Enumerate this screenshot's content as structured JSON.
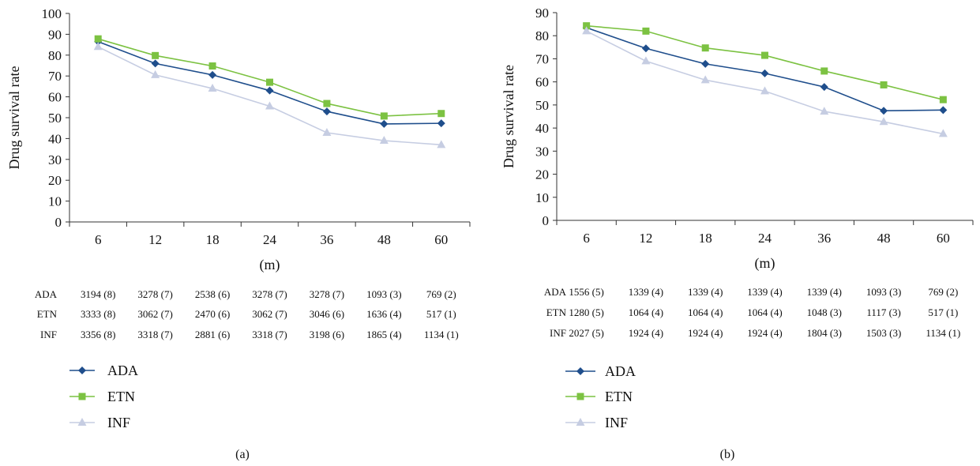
{
  "chart_data": [
    {
      "type": "line",
      "panel_label": "(a)",
      "categories": [
        "6",
        "12",
        "18",
        "24",
        "36",
        "48",
        "60"
      ],
      "xlabel": "(m)",
      "ylabel": "Drug survival rate",
      "ylim": [
        0,
        100
      ],
      "yticks": [
        0,
        10,
        20,
        30,
        40,
        50,
        60,
        70,
        80,
        90,
        100
      ],
      "series": [
        {
          "name": "ADA",
          "color": "#1f4e8c",
          "marker": "diamond",
          "values": [
            86.5,
            76,
            70.5,
            63,
            53,
            47,
            47.3
          ]
        },
        {
          "name": "ETN",
          "color": "#7cc242",
          "marker": "square",
          "values": [
            87.8,
            79.8,
            74.8,
            67,
            56.8,
            50.8,
            52
          ]
        },
        {
          "name": "INF",
          "color": "#c6cde2",
          "marker": "triangle",
          "values": [
            84,
            70.5,
            64,
            55.5,
            42.8,
            39,
            37
          ]
        }
      ],
      "table": [
        {
          "label": "ADA",
          "cells": [
            "3194 (8)",
            "3278 (7)",
            "2538 (6)",
            "3278 (7)",
            "3278 (7)",
            "1093 (3)",
            "769 (2)"
          ]
        },
        {
          "label": "ETN",
          "cells": [
            "3333 (8)",
            "3062 (7)",
            "2470 (6)",
            "3062 (7)",
            "3046 (6)",
            "1636 (4)",
            "517 (1)"
          ]
        },
        {
          "label": "INF",
          "cells": [
            "3356 (8)",
            "3318 (7)",
            "2881 (6)",
            "3318 (7)",
            "3198 (6)",
            "1865 (4)",
            "1134 (1)"
          ]
        }
      ],
      "legend_placement": "bottom-left"
    },
    {
      "type": "line",
      "panel_label": "(b)",
      "categories": [
        "6",
        "12",
        "18",
        "24",
        "36",
        "48",
        "60"
      ],
      "xlabel": "(m)",
      "ylabel": "Drug survival rate",
      "ylim": [
        0,
        90
      ],
      "yticks": [
        0,
        10,
        20,
        30,
        40,
        50,
        60,
        70,
        80,
        90
      ],
      "series": [
        {
          "name": "ADA",
          "color": "#1f4e8c",
          "marker": "diamond",
          "values": [
            83.5,
            74.5,
            67.8,
            63.7,
            57.8,
            47.5,
            47.8
          ]
        },
        {
          "name": "ETN",
          "color": "#7cc242",
          "marker": "square",
          "values": [
            84.3,
            82,
            74.7,
            71.5,
            64.7,
            58.7,
            52.3
          ]
        },
        {
          "name": "INF",
          "color": "#c6cde2",
          "marker": "triangle",
          "values": [
            82,
            69,
            60.8,
            56,
            47.2,
            42.7,
            37.5
          ]
        }
      ],
      "table": [
        {
          "label": "ADA",
          "cells": [
            "1556 (5)",
            "1339 (4)",
            "1339 (4)",
            "1339 (4)",
            "1339 (4)",
            "1093 (3)",
            "769 (2)"
          ]
        },
        {
          "label": "ETN",
          "cells": [
            "1280 (5)",
            "1064 (4)",
            "1064 (4)",
            "1064 (4)",
            "1048 (3)",
            "1117 (3)",
            "517 (1)"
          ]
        },
        {
          "label": "INF",
          "cells": [
            "2027 (5)",
            "1924 (4)",
            "1924 (4)",
            "1924 (4)",
            "1804 (3)",
            "1503 (3)",
            "1134 (1)"
          ]
        }
      ],
      "legend_placement": "bottom-left"
    }
  ]
}
